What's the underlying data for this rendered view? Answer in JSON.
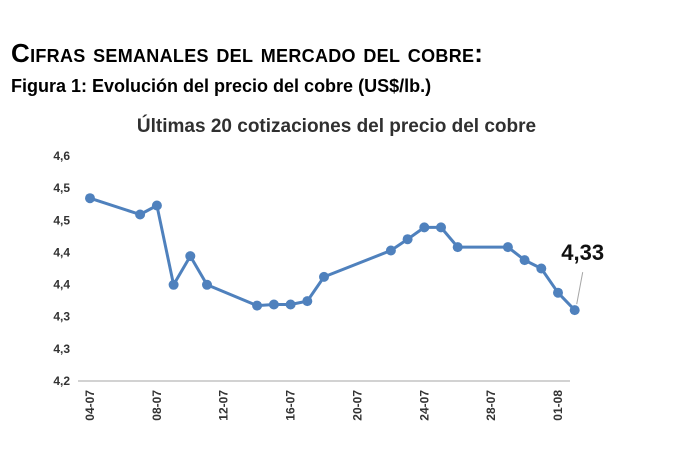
{
  "header": {
    "title": "Cifras semanales del mercado del cobre:",
    "figure_caption": "Figura 1: Evolución del precio del cobre (US$/lb.)"
  },
  "chart_data": {
    "type": "line",
    "title": "Últimas 20 cotizaciones del precio del cobre",
    "xlabel": "",
    "ylabel": "",
    "x_tick_labels": [
      "04-07",
      "08-07",
      "12-07",
      "16-07",
      "20-07",
      "24-07",
      "28-07",
      "01-08"
    ],
    "x_range": [
      "04-07",
      "01-08"
    ],
    "y_tick_labels": [
      "4,2",
      "4,3",
      "4,3",
      "4,4",
      "4,4",
      "4,5",
      "4,5",
      "4,6"
    ],
    "ylim": [
      4.2,
      4.6
    ],
    "grid": false,
    "series": [
      {
        "color": "#4f81bd",
        "points": [
          {
            "x": "04-07",
            "y": 4.525
          },
          {
            "x": "07-07",
            "y": 4.496
          },
          {
            "x": "08-07",
            "y": 4.512
          },
          {
            "x": "09-07",
            "y": 4.371
          },
          {
            "x": "10-07",
            "y": 4.422
          },
          {
            "x": "11-07",
            "y": 4.371
          },
          {
            "x": "14-07",
            "y": 4.334
          },
          {
            "x": "15-07",
            "y": 4.336
          },
          {
            "x": "16-07",
            "y": 4.336
          },
          {
            "x": "17-07",
            "y": 4.342
          },
          {
            "x": "18-07",
            "y": 4.385
          },
          {
            "x": "22-07",
            "y": 4.432
          },
          {
            "x": "23-07",
            "y": 4.452
          },
          {
            "x": "24-07",
            "y": 4.473
          },
          {
            "x": "25-07",
            "y": 4.473
          },
          {
            "x": "26-07",
            "y": 4.438
          },
          {
            "x": "29-07",
            "y": 4.438
          },
          {
            "x": "30-07",
            "y": 4.415
          },
          {
            "x": "31-07",
            "y": 4.4
          },
          {
            "x": "01-08",
            "y": 4.357
          },
          {
            "x": "02-08",
            "y": 4.326
          }
        ]
      }
    ],
    "annotation": {
      "text": "4,33",
      "x": "02-08"
    }
  }
}
